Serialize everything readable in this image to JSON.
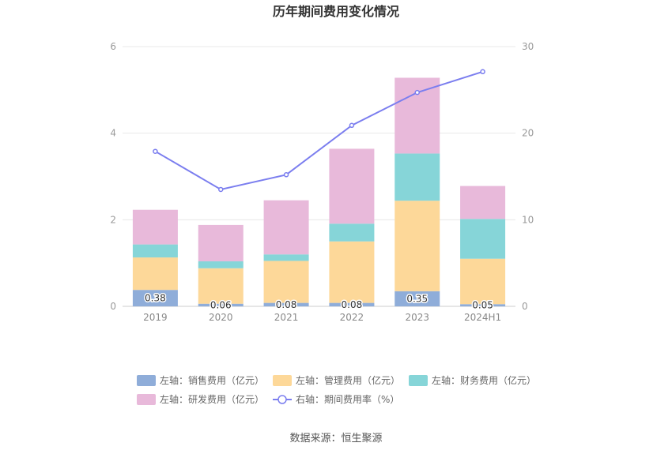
{
  "chart_data": {
    "type": "bar",
    "title": "历年期间费用变化情况",
    "categories": [
      "2019",
      "2020",
      "2021",
      "2022",
      "2023",
      "2024H1"
    ],
    "stacked": true,
    "series": [
      {
        "name": "左轴：销售费用（亿元）",
        "axis": "left",
        "color": "#8fadd9",
        "values": [
          0.38,
          0.06,
          0.08,
          0.08,
          0.35,
          0.05
        ],
        "labels": [
          "0.38",
          "0.06",
          "0.08",
          "0.08",
          "0.35",
          "0.05"
        ]
      },
      {
        "name": "左轴：管理费用（亿元）",
        "axis": "left",
        "color": "#fdd899",
        "values": [
          0.75,
          0.82,
          0.97,
          1.42,
          2.09,
          1.05
        ]
      },
      {
        "name": "左轴：财务费用（亿元）",
        "axis": "left",
        "color": "#86d5d8",
        "values": [
          0.3,
          0.16,
          0.15,
          0.41,
          1.09,
          0.92
        ]
      },
      {
        "name": "左轴：研发费用（亿元）",
        "axis": "left",
        "color": "#e8b9da",
        "values": [
          0.8,
          0.84,
          1.25,
          1.73,
          1.75,
          0.76
        ]
      },
      {
        "name": "右轴：期间费用率（%）",
        "axis": "right",
        "type": "line",
        "color": "#7b7eef",
        "values": [
          17.9,
          13.5,
          15.2,
          20.9,
          24.7,
          27.1
        ]
      }
    ],
    "ylim_left": [
      0,
      6
    ],
    "yticks_left": [
      "0",
      "2",
      "4",
      "6"
    ],
    "ylim_right": [
      0,
      30
    ],
    "yticks_right": [
      "0",
      "10",
      "20",
      "30"
    ],
    "grid": true,
    "legend_position": "bottom"
  },
  "source": "数据来源：恒生聚源",
  "colors": {
    "grid": "#e8e8e8",
    "axis": "#cccccc"
  }
}
